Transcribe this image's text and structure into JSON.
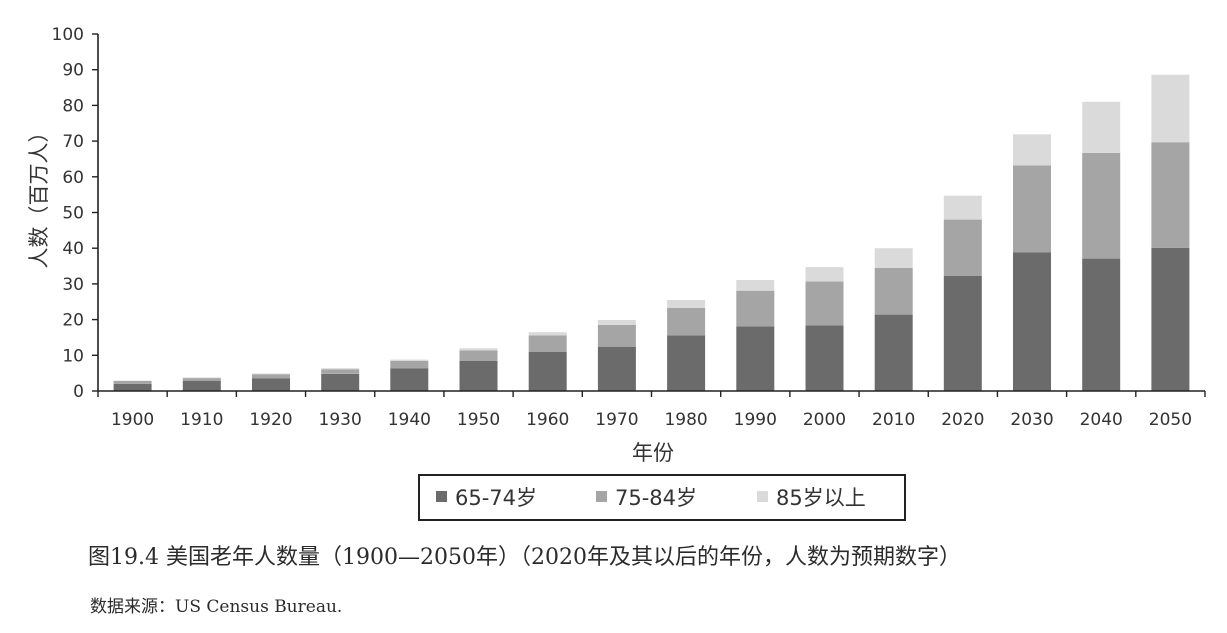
{
  "chart_data": {
    "type": "bar",
    "stacked": true,
    "categories": [
      "1900",
      "1910",
      "1920",
      "1930",
      "1940",
      "1950",
      "1960",
      "1970",
      "1980",
      "1990",
      "2000",
      "2010",
      "2020",
      "2030",
      "2040",
      "2050"
    ],
    "series": [
      {
        "name": "65-74岁",
        "color": "#6b6b6b",
        "values": [
          2,
          2.8,
          3.5,
          4.8,
          6.4,
          8.4,
          11,
          12.4,
          15.6,
          18.1,
          18.4,
          21.4,
          32.3,
          38.8,
          37.1,
          40.1
        ]
      },
      {
        "name": "75-84岁",
        "color": "#a5a5a5",
        "values": [
          0.8,
          0.8,
          1.2,
          1.3,
          2,
          3,
          4.6,
          6.1,
          7.7,
          10,
          12.3,
          13.1,
          15.7,
          24.4,
          29.6,
          29.6
        ]
      },
      {
        "name": "85岁以上",
        "color": "#dadada",
        "values": [
          0.1,
          0.2,
          0.2,
          0.3,
          0.4,
          0.6,
          0.9,
          1.4,
          2.2,
          3,
          4,
          5.5,
          6.7,
          8.7,
          14.3,
          18.9
        ]
      }
    ],
    "xlabel": "年份",
    "ylabel": "人数（百万人）",
    "ylim": [
      0,
      100
    ],
    "yticks": [
      0,
      10,
      20,
      30,
      40,
      50,
      60,
      70,
      80,
      90,
      100
    ],
    "legend_position": "bottom",
    "grid": false
  },
  "caption": "图19.4 美国老年人数量（1900—2050年）（2020年及其以后的年份，人数为预期数字）",
  "source": "数据来源：US Census Bureau."
}
